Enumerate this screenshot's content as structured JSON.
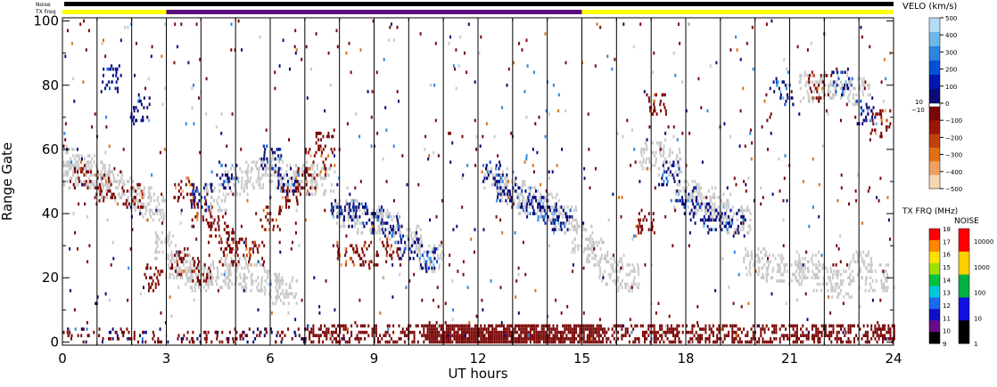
{
  "chart_data": {
    "type": "heatmap",
    "title": "",
    "xlabel": "UT hours",
    "ylabel": "Range Gate",
    "xlim": [
      0,
      24
    ],
    "ylim": [
      -1,
      101
    ],
    "x_ticks": [
      "0",
      "3",
      "6",
      "9",
      "12",
      "15",
      "18",
      "21",
      "24"
    ],
    "y_ticks": [
      "0",
      "20",
      "40",
      "60",
      "80",
      "100"
    ],
    "vertical_lines_hours": [
      1,
      2,
      3,
      4,
      5,
      6,
      7,
      8,
      9,
      10,
      11,
      12,
      13,
      14,
      15,
      16,
      17,
      18,
      19,
      20,
      21,
      22,
      23
    ],
    "top_bars": {
      "noise_label": "Noise",
      "txfreq_label": "TX Freq",
      "noise_color": "#000000",
      "txfreq_segments": [
        {
          "start": 0,
          "end": 3,
          "color": "#ffff00"
        },
        {
          "start": 3,
          "end": 15,
          "color": "#5a0f80"
        },
        {
          "start": 15,
          "end": 24,
          "color": "#ffff00"
        }
      ]
    },
    "velocity_scale": {
      "title": "VELO (km/s)",
      "range": [
        -500,
        500
      ],
      "ticks": [
        "500",
        "400",
        "300",
        "200",
        "100",
        "0",
        "−100",
        "−200",
        "−300",
        "−400",
        "−500"
      ],
      "inner_labels": [
        "10",
        "−10"
      ],
      "positive_colors": [
        "#0a0a78",
        "#0018b0",
        "#0050d8",
        "#2a86e0",
        "#6cb6ea",
        "#b4dcf4"
      ],
      "negative_colors": [
        "#7a0606",
        "#9c1606",
        "#c04008",
        "#e07010",
        "#f0a060",
        "#f8d4b0"
      ],
      "ground_scatter_color": "#c8c8c8"
    },
    "txfreq_scale": {
      "title": "TX FRQ (MHz)",
      "ticks": [
        "18",
        "17",
        "16",
        "15",
        "14",
        "13",
        "12",
        "11",
        "10",
        "9"
      ],
      "colors": [
        "#000000",
        "#6a0a8a",
        "#1010c8",
        "#1a6af0",
        "#00c8d8",
        "#00c040",
        "#a0e000",
        "#ffe000",
        "#ff8800",
        "#ff0000"
      ]
    },
    "noise_scale": {
      "title": "NOISE",
      "ticks": [
        "10000",
        "1000",
        "100",
        "10",
        "1"
      ],
      "colors": [
        "#000000",
        "#1010e0",
        "#00b040",
        "#ffd000",
        "#ff0000"
      ]
    },
    "series": [
      {
        "type": "ground_scatter",
        "points": [
          [
            0.0,
            57
          ],
          [
            0.3,
            52
          ],
          [
            0.6,
            54
          ],
          [
            1.0,
            52
          ],
          [
            1.4,
            49
          ],
          [
            1.8,
            47
          ],
          [
            2.2,
            44
          ],
          [
            2.6,
            42
          ],
          [
            3.0,
            30
          ],
          [
            3.3,
            24
          ],
          [
            3.6,
            21
          ],
          [
            4.0,
            20
          ],
          [
            4.5,
            21
          ],
          [
            5.0,
            22
          ],
          [
            5.5,
            20
          ],
          [
            6.0,
            18
          ],
          [
            6.4,
            16
          ],
          [
            4.4,
            45
          ],
          [
            5.0,
            50
          ],
          [
            5.6,
            52
          ],
          [
            6.0,
            54
          ],
          [
            6.5,
            51
          ],
          [
            7.0,
            52
          ],
          [
            7.5,
            50
          ],
          [
            8.2,
            40
          ],
          [
            8.8,
            38
          ],
          [
            9.4,
            36
          ],
          [
            10.0,
            32
          ],
          [
            10.6,
            26
          ],
          [
            12.5,
            50
          ],
          [
            13.0,
            46
          ],
          [
            13.5,
            44
          ],
          [
            14.0,
            42
          ],
          [
            14.5,
            38
          ],
          [
            15.0,
            32
          ],
          [
            15.4,
            28
          ],
          [
            15.8,
            22
          ],
          [
            16.3,
            20
          ],
          [
            17.0,
            58
          ],
          [
            17.5,
            56
          ],
          [
            18.0,
            46
          ],
          [
            18.5,
            44
          ],
          [
            19.0,
            42
          ],
          [
            19.5,
            38
          ],
          [
            20.0,
            25
          ],
          [
            20.5,
            23
          ],
          [
            21.0,
            22
          ],
          [
            21.5,
            24
          ],
          [
            22.0,
            20
          ],
          [
            22.5,
            18
          ],
          [
            23.0,
            24
          ],
          [
            23.5,
            20
          ],
          [
            23.0,
            78
          ],
          [
            22.3,
            80
          ],
          [
            21.6,
            79
          ]
        ]
      },
      {
        "type": "ionospheric_negative",
        "points": [
          [
            0.5,
            52
          ],
          [
            1.2,
            48
          ],
          [
            2.0,
            46
          ],
          [
            3.5,
            48
          ],
          [
            4.0,
            40
          ],
          [
            4.5,
            36
          ],
          [
            5.0,
            32
          ],
          [
            5.5,
            28
          ],
          [
            6.0,
            38
          ],
          [
            6.5,
            45
          ],
          [
            7.0,
            50
          ],
          [
            7.3,
            56
          ],
          [
            7.6,
            62
          ],
          [
            8.2,
            27
          ],
          [
            8.8,
            27
          ],
          [
            9.5,
            28
          ],
          [
            3.3,
            25
          ],
          [
            4.0,
            22
          ],
          [
            2.6,
            20
          ],
          [
            4.8,
            28
          ],
          [
            16.8,
            38
          ],
          [
            17.2,
            74
          ],
          [
            21.8,
            80
          ],
          [
            23.6,
            68
          ]
        ]
      },
      {
        "type": "ionospheric_positive",
        "points": [
          [
            8.0,
            42
          ],
          [
            8.5,
            40
          ],
          [
            9.0,
            38
          ],
          [
            9.5,
            35
          ],
          [
            10.0,
            30
          ],
          [
            10.5,
            26
          ],
          [
            12.4,
            52
          ],
          [
            12.8,
            48
          ],
          [
            13.2,
            45
          ],
          [
            13.6,
            43
          ],
          [
            14.0,
            40
          ],
          [
            14.4,
            38
          ],
          [
            4.0,
            45
          ],
          [
            4.8,
            52
          ],
          [
            6.0,
            58
          ],
          [
            6.5,
            50
          ],
          [
            17.5,
            52
          ],
          [
            18.0,
            44
          ],
          [
            18.4,
            40
          ],
          [
            18.8,
            38
          ],
          [
            19.4,
            37
          ],
          [
            1.4,
            82
          ],
          [
            2.2,
            73
          ],
          [
            20.8,
            78
          ],
          [
            22.5,
            81
          ],
          [
            23.2,
            72
          ]
        ]
      },
      {
        "type": "near_range_negative",
        "gate_range": [
          0,
          5
        ],
        "hour_range": [
          7,
          24
        ],
        "densest_hours": [
          10.5,
          15.5
        ]
      }
    ]
  }
}
